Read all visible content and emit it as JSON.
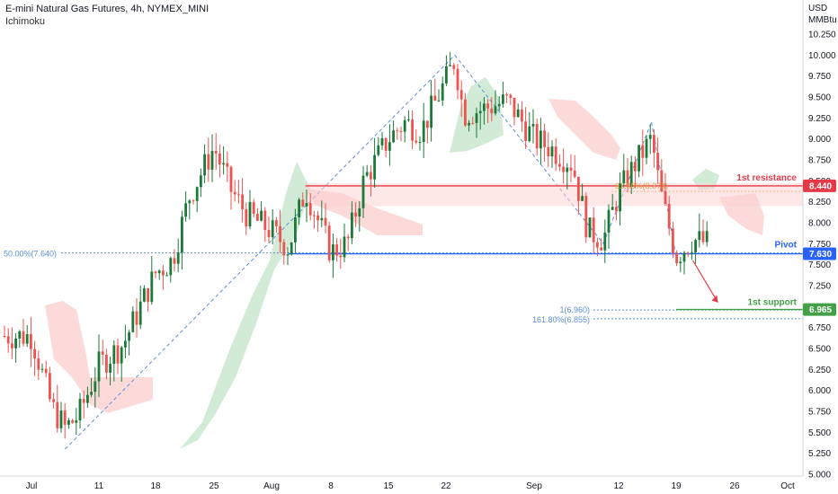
{
  "header": {
    "title": "E-mini Natural Gas Futures, 4h, NYMEX_MINI",
    "indicator": "Ichimoku"
  },
  "colors": {
    "up": "#26a69a",
    "upDark": "#1b7a3a",
    "down": "#ef5350",
    "resistance": "#e53946",
    "pivot": "#2962ff",
    "support": "#43a047",
    "fib": "#5b8fd8",
    "cloudGreen": "#c9e8cf",
    "cloudRed": "#fbd3d3"
  },
  "chart_data": {
    "type": "candlestick",
    "price_axis": {
      "unit_top": "USD",
      "unit_bottom": "MMBtu",
      "ylim": [
        5.0,
        10.25
      ],
      "ticks": [
        "10.250",
        "10.000",
        "9.750",
        "9.500",
        "9.250",
        "9.000",
        "8.750",
        "8.500",
        "8.250",
        "8.000",
        "7.750",
        "7.500",
        "7.250",
        "7.000",
        "6.750",
        "6.500",
        "6.250",
        "6.000",
        "5.750",
        "5.500",
        "5.250",
        "5.000"
      ]
    },
    "time_axis": {
      "ticks": [
        "Jul",
        "11",
        "18",
        "25",
        "Aug",
        "8",
        "15",
        "22",
        "Sep",
        "12",
        "19",
        "26",
        "Oct"
      ]
    },
    "levels": [
      {
        "name": "1st resistance",
        "value": 8.44,
        "tag": "8.440"
      },
      {
        "name": "Pivot",
        "value": 7.63,
        "tag": "7.630"
      },
      {
        "name": "1st support",
        "value": 6.965,
        "tag": "6.965"
      }
    ],
    "fib_labels": [
      {
        "text": "50.00%(7.640)",
        "value": 7.64
      },
      {
        "text": "1(6.960)",
        "value": 6.96
      },
      {
        "text": "161.80%(6.855)",
        "value": 6.855
      },
      {
        "text": "61.80%(8.373)",
        "value": 8.373
      }
    ],
    "price_path": [
      [
        "Jul 1",
        6.65
      ],
      [
        "Jul 4",
        5.8
      ],
      [
        "Jul 6",
        5.55
      ],
      [
        "Jul 8",
        5.7
      ],
      [
        "Jul 11",
        6.3
      ],
      [
        "Jul 14",
        6.55
      ],
      [
        "Jul 18",
        7.4
      ],
      [
        "Jul 20",
        7.55
      ],
      [
        "Jul 22",
        8.3
      ],
      [
        "Jul 25",
        8.9
      ],
      [
        "Jul 27",
        8.4
      ],
      [
        "Jul 29",
        8.1
      ],
      [
        "Aug 1",
        7.9
      ],
      [
        "Aug 3",
        7.7
      ],
      [
        "Aug 5",
        8.4
      ],
      [
        "Aug 8",
        7.65
      ],
      [
        "Aug 10",
        7.75
      ],
      [
        "Aug 12",
        8.5
      ],
      [
        "Aug 15",
        9.0
      ],
      [
        "Aug 17",
        9.2
      ],
      [
        "Aug 19",
        9.1
      ],
      [
        "Aug 22",
        9.7
      ],
      [
        "Aug 23",
        9.95
      ],
      [
        "Aug 24",
        9.3
      ],
      [
        "Aug 26",
        9.35
      ],
      [
        "Aug 29",
        9.45
      ],
      [
        "Sep 1",
        9.0
      ],
      [
        "Sep 3",
        8.9
      ],
      [
        "Sep 6",
        8.7
      ],
      [
        "Sep 8",
        7.9
      ],
      [
        "Sep 10",
        7.8
      ],
      [
        "Sep 12",
        8.35
      ],
      [
        "Sep 14",
        8.7
      ],
      [
        "Sep 16",
        9.0
      ],
      [
        "Sep 17",
        8.4
      ],
      [
        "Sep 19",
        7.6
      ],
      [
        "Sep 21",
        7.8
      ],
      [
        "Sep 23",
        7.75
      ]
    ]
  }
}
